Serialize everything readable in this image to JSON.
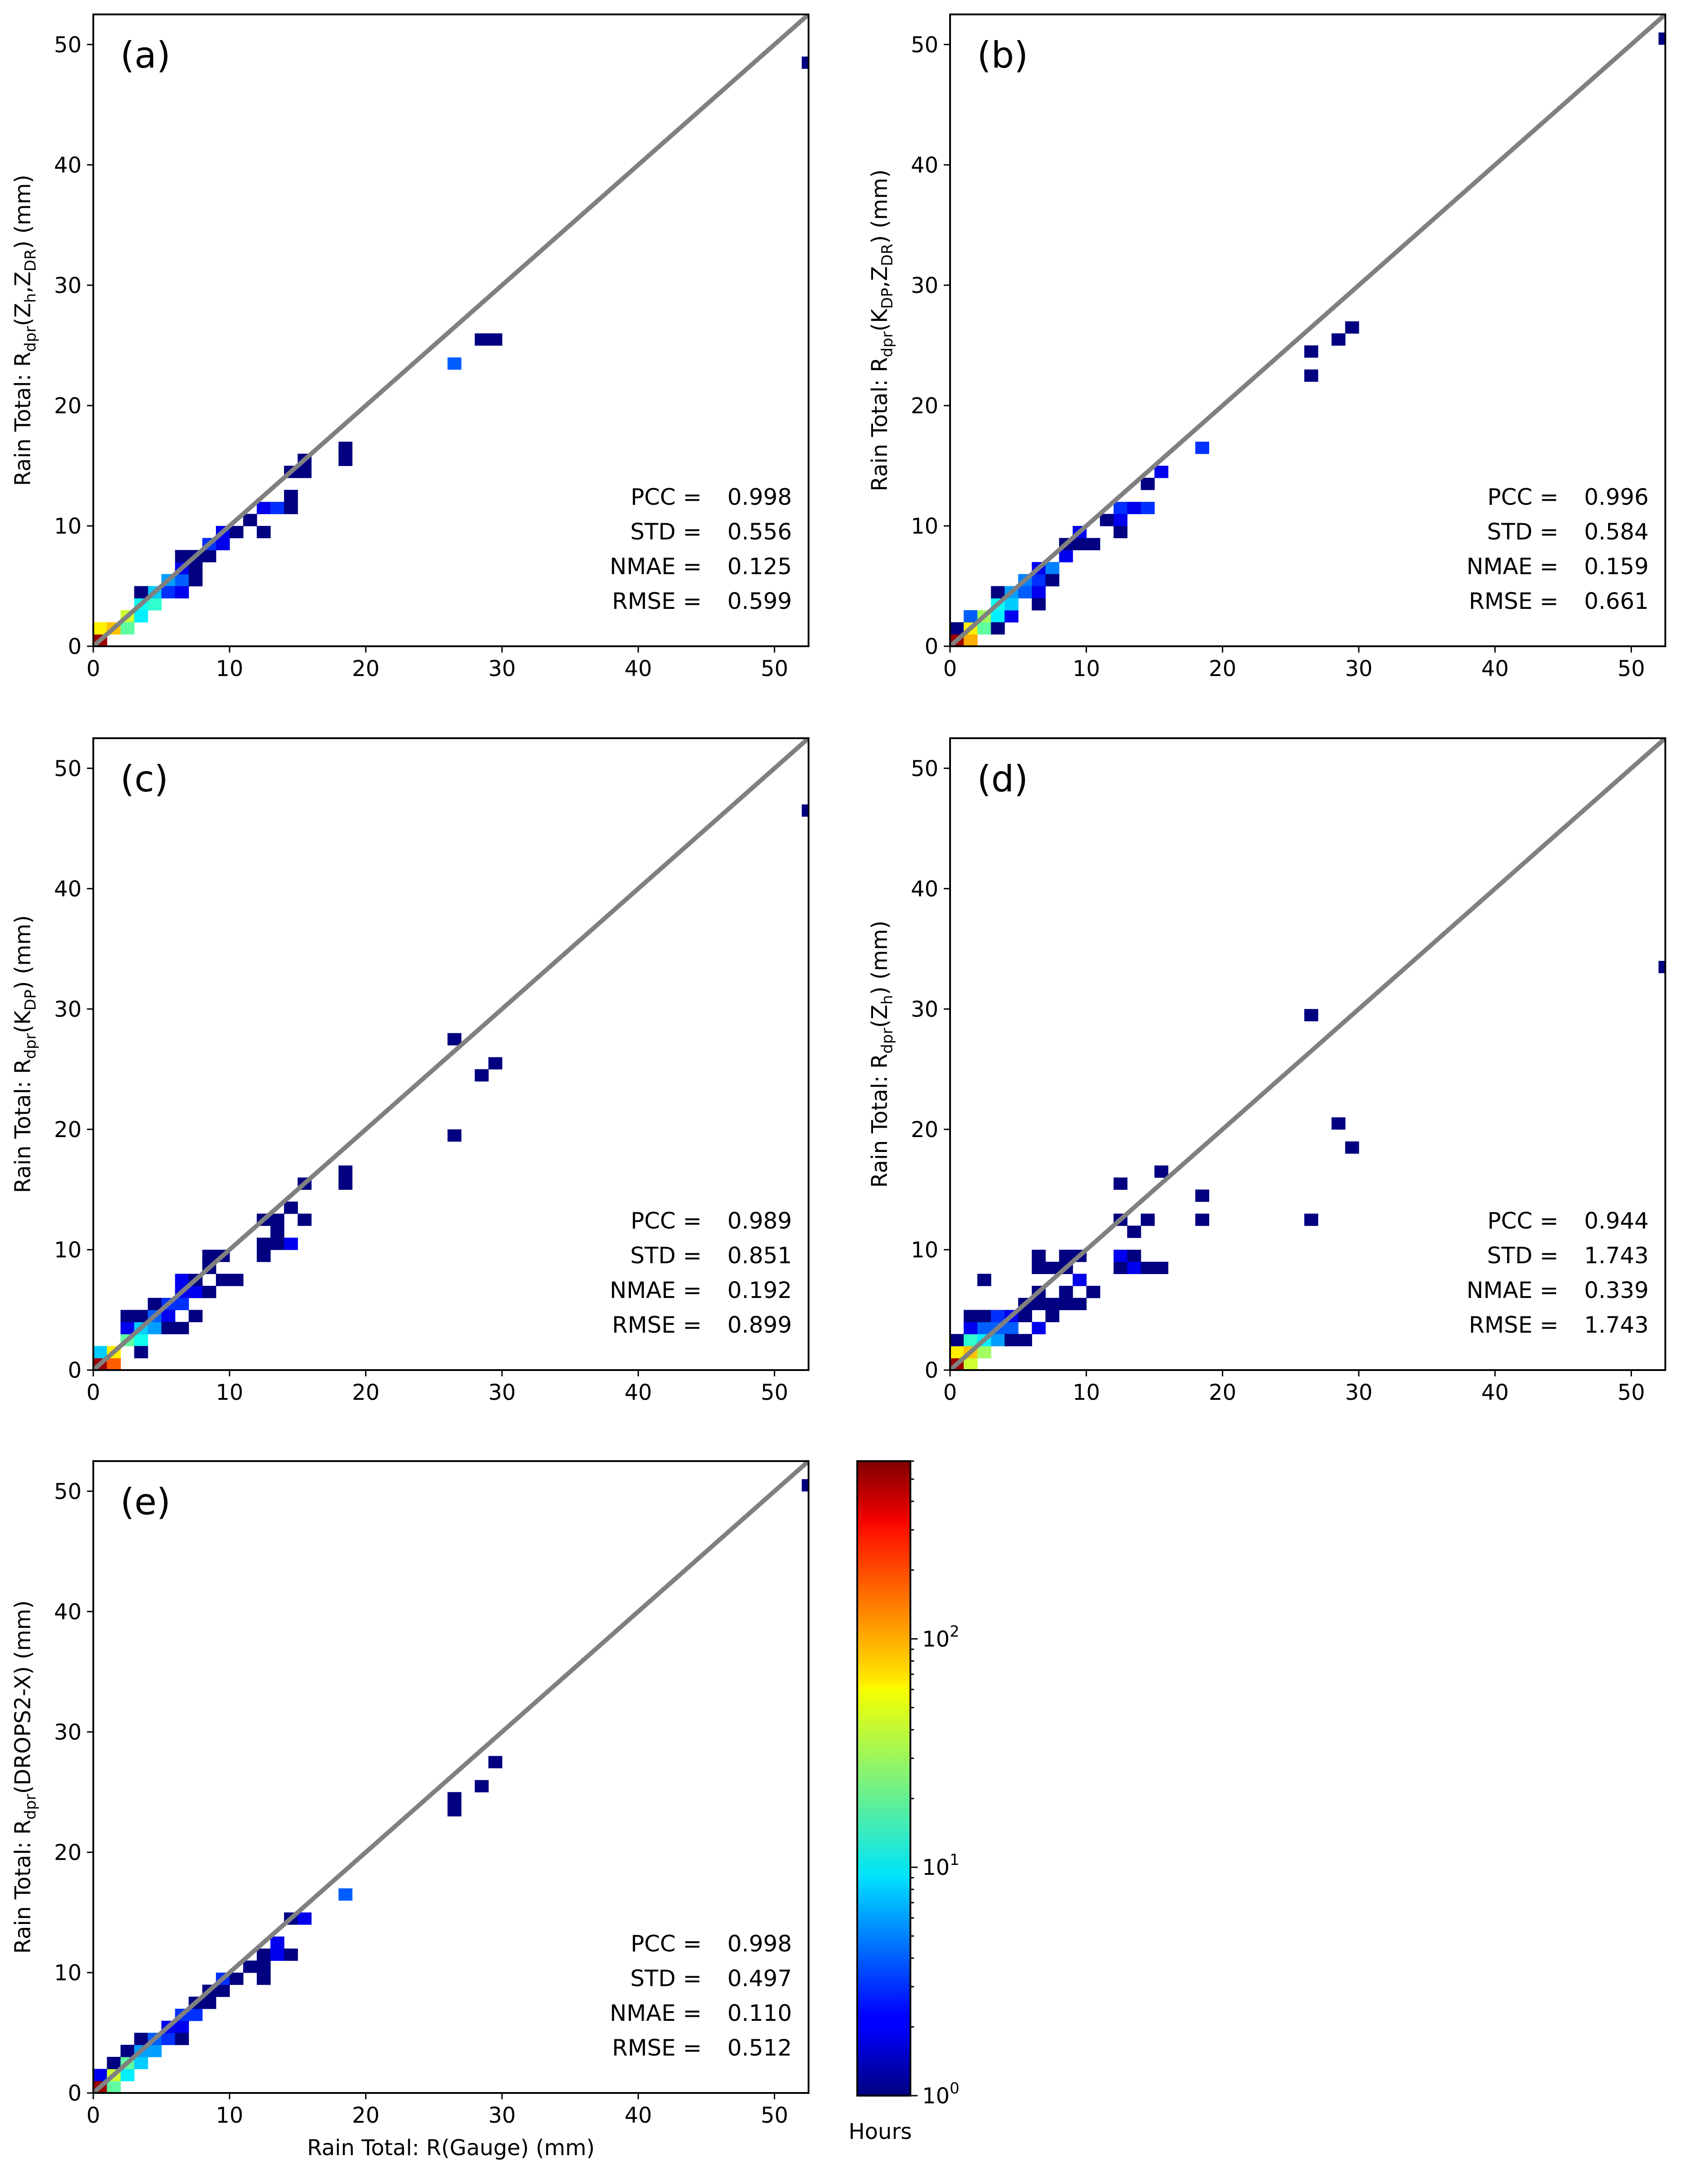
{
  "colorbar": {
    "label": "Hours",
    "scale": "log",
    "range": [
      1,
      600
    ],
    "colormap": "jet",
    "ticks": [
      {
        "base": "10",
        "exp": "0",
        "value": 1
      },
      {
        "base": "10",
        "exp": "1",
        "value": 10
      },
      {
        "base": "10",
        "exp": "2",
        "value": 100
      }
    ]
  },
  "shared": {
    "xlabel": "Rain Total: R(Gauge) (mm)",
    "xlim": [
      0,
      52.5
    ],
    "ylim": [
      0,
      52.5
    ],
    "ticks": [
      "0",
      "10",
      "20",
      "30",
      "40",
      "50"
    ],
    "stat_names": [
      "PCC =",
      "STD =",
      "NMAE =",
      "RMSE ="
    ],
    "bin_width": 1.0,
    "reference_line": "1:1"
  },
  "chart_data": [
    {
      "type": "heatmap",
      "panel": "(a)",
      "title": "",
      "ylabel": {
        "prefix": "Rain Total: R",
        "sub": "dpr",
        "mid": "(Z",
        "sub2": "h",
        "mid2": ",Z",
        "sub3": "DR",
        "suffix": ") (mm)"
      },
      "xlabel": "",
      "xlim": [
        0,
        52.5
      ],
      "ylim": [
        0,
        52.5
      ],
      "stats": {
        "PCC": "0.998",
        "STD": "0.556",
        "NMAE": "0.125",
        "RMSE": "0.599"
      },
      "cells": [
        [
          0,
          0,
          500
        ],
        [
          0,
          1,
          60
        ],
        [
          1,
          1,
          80
        ],
        [
          2,
          2,
          40
        ],
        [
          2,
          1,
          20
        ],
        [
          3,
          3,
          12
        ],
        [
          3,
          2,
          10
        ],
        [
          4,
          3,
          15
        ],
        [
          4,
          4,
          8
        ],
        [
          3,
          4,
          1
        ],
        [
          5,
          5,
          6
        ],
        [
          5,
          4,
          3
        ],
        [
          6,
          5,
          4
        ],
        [
          6,
          6,
          2
        ],
        [
          6,
          4,
          2
        ],
        [
          7,
          6,
          1
        ],
        [
          7,
          7,
          1
        ],
        [
          6,
          7,
          1
        ],
        [
          8,
          7,
          1
        ],
        [
          7,
          5,
          1
        ],
        [
          8,
          8,
          3
        ],
        [
          9,
          8,
          2
        ],
        [
          9,
          9,
          2
        ],
        [
          10,
          9,
          1
        ],
        [
          11,
          10,
          1
        ],
        [
          12,
          11,
          2
        ],
        [
          12,
          9,
          1
        ],
        [
          13,
          11,
          3
        ],
        [
          14,
          14,
          1
        ],
        [
          14,
          12,
          1
        ],
        [
          14,
          11,
          1
        ],
        [
          15,
          14,
          1
        ],
        [
          15,
          15,
          1
        ],
        [
          18,
          15,
          1
        ],
        [
          18,
          16,
          1
        ],
        [
          26,
          23,
          4
        ],
        [
          28,
          25,
          1
        ],
        [
          29,
          25,
          1
        ],
        [
          52,
          48,
          1
        ]
      ]
    },
    {
      "type": "heatmap",
      "panel": "(b)",
      "title": "",
      "ylabel": {
        "prefix": "Rain Total: R",
        "sub": "dpr",
        "mid": "(K",
        "sub2": "DP",
        "mid2": ",Z",
        "sub3": "DR",
        "suffix": ") (mm)"
      },
      "xlabel": "",
      "xlim": [
        0,
        52.5
      ],
      "ylim": [
        0,
        52.5
      ],
      "stats": {
        "PCC": "0.996",
        "STD": "0.584",
        "NMAE": "0.159",
        "RMSE": "0.661"
      },
      "cells": [
        [
          0,
          0,
          500
        ],
        [
          0,
          1,
          1
        ],
        [
          1,
          0,
          90
        ],
        [
          1,
          1,
          60
        ],
        [
          1,
          2,
          4
        ],
        [
          2,
          1,
          20
        ],
        [
          2,
          2,
          30
        ],
        [
          3,
          2,
          10
        ],
        [
          3,
          3,
          12
        ],
        [
          3,
          1,
          1
        ],
        [
          3,
          4,
          1
        ],
        [
          4,
          4,
          6
        ],
        [
          4,
          2,
          2
        ],
        [
          4,
          3,
          8
        ],
        [
          5,
          5,
          5
        ],
        [
          5,
          4,
          4
        ],
        [
          6,
          5,
          3
        ],
        [
          6,
          6,
          2
        ],
        [
          6,
          4,
          2
        ],
        [
          6,
          3,
          1
        ],
        [
          7,
          6,
          5
        ],
        [
          7,
          5,
          1
        ],
        [
          8,
          7,
          2
        ],
        [
          8,
          8,
          1
        ],
        [
          9,
          8,
          1
        ],
        [
          9,
          9,
          2
        ],
        [
          10,
          8,
          1
        ],
        [
          11,
          10,
          1
        ],
        [
          12,
          11,
          3
        ],
        [
          12,
          10,
          2
        ],
        [
          12,
          9,
          1
        ],
        [
          13,
          11,
          2
        ],
        [
          14,
          11,
          3
        ],
        [
          14,
          13,
          1
        ],
        [
          15,
          14,
          2
        ],
        [
          18,
          16,
          3
        ],
        [
          26,
          24,
          1
        ],
        [
          26,
          22,
          1
        ],
        [
          28,
          25,
          1
        ],
        [
          29,
          26,
          1
        ],
        [
          52,
          50,
          1
        ]
      ]
    },
    {
      "type": "heatmap",
      "panel": "(c)",
      "title": "",
      "ylabel": {
        "prefix": "Rain Total: R",
        "sub": "dpr",
        "mid": "(K",
        "sub2": "DP",
        "mid2": "",
        "sub3": "",
        "suffix": ") (mm)"
      },
      "xlabel": "",
      "xlim": [
        0,
        52.5
      ],
      "ylim": [
        0,
        52.5
      ],
      "stats": {
        "PCC": "0.989",
        "STD": "0.851",
        "NMAE": "0.192",
        "RMSE": "0.899"
      },
      "cells": [
        [
          0,
          0,
          500
        ],
        [
          0,
          1,
          8
        ],
        [
          1,
          0,
          150
        ],
        [
          1,
          1,
          60
        ],
        [
          2,
          2,
          20
        ],
        [
          2,
          3,
          2
        ],
        [
          2,
          4,
          1
        ],
        [
          3,
          2,
          12
        ],
        [
          3,
          3,
          8
        ],
        [
          3,
          4,
          1
        ],
        [
          3,
          1,
          1
        ],
        [
          4,
          3,
          6
        ],
        [
          4,
          4,
          4
        ],
        [
          4,
          5,
          1
        ],
        [
          5,
          5,
          3
        ],
        [
          5,
          4,
          2
        ],
        [
          5,
          3,
          1
        ],
        [
          6,
          6,
          2
        ],
        [
          6,
          5,
          3
        ],
        [
          6,
          3,
          1
        ],
        [
          6,
          7,
          2
        ],
        [
          7,
          6,
          2
        ],
        [
          7,
          4,
          1
        ],
        [
          7,
          7,
          1
        ],
        [
          8,
          8,
          1
        ],
        [
          8,
          6,
          1
        ],
        [
          8,
          9,
          1
        ],
        [
          9,
          9,
          1
        ],
        [
          9,
          7,
          1
        ],
        [
          10,
          7,
          1
        ],
        [
          12,
          10,
          1
        ],
        [
          12,
          12,
          1
        ],
        [
          12,
          9,
          1
        ],
        [
          13,
          10,
          1
        ],
        [
          13,
          11,
          1
        ],
        [
          13,
          12,
          1
        ],
        [
          14,
          10,
          2
        ],
        [
          14,
          13,
          1
        ],
        [
          15,
          15,
          1
        ],
        [
          15,
          12,
          1
        ],
        [
          18,
          15,
          1
        ],
        [
          18,
          16,
          1
        ],
        [
          26,
          27,
          1
        ],
        [
          26,
          19,
          1
        ],
        [
          28,
          24,
          1
        ],
        [
          29,
          25,
          1
        ],
        [
          52,
          46,
          1
        ]
      ]
    },
    {
      "type": "heatmap",
      "panel": "(d)",
      "title": "",
      "ylabel": {
        "prefix": "Rain Total: R",
        "sub": "dpr",
        "mid": "(Z",
        "sub2": "h",
        "mid2": "",
        "sub3": "",
        "suffix": ") (mm)"
      },
      "xlabel": "",
      "xlim": [
        0,
        52.5
      ],
      "ylim": [
        0,
        52.5
      ],
      "stats": {
        "PCC": "0.944",
        "STD": "1.743",
        "NMAE": "0.339",
        "RMSE": "1.743"
      },
      "cells": [
        [
          0,
          0,
          500
        ],
        [
          0,
          1,
          60
        ],
        [
          0,
          2,
          1
        ],
        [
          1,
          0,
          40
        ],
        [
          1,
          1,
          80
        ],
        [
          1,
          2,
          15
        ],
        [
          1,
          3,
          2
        ],
        [
          1,
          4,
          1
        ],
        [
          2,
          1,
          30
        ],
        [
          2,
          2,
          10
        ],
        [
          2,
          3,
          4
        ],
        [
          2,
          4,
          1
        ],
        [
          2,
          7,
          1
        ],
        [
          3,
          2,
          6
        ],
        [
          3,
          3,
          4
        ],
        [
          3,
          4,
          3
        ],
        [
          4,
          3,
          4
        ],
        [
          4,
          4,
          2
        ],
        [
          4,
          2,
          1
        ],
        [
          5,
          5,
          1
        ],
        [
          5,
          2,
          1
        ],
        [
          5,
          4,
          1
        ],
        [
          6,
          3,
          2
        ],
        [
          6,
          6,
          1
        ],
        [
          6,
          9,
          1
        ],
        [
          6,
          8,
          1
        ],
        [
          6,
          5,
          1
        ],
        [
          7,
          5,
          1
        ],
        [
          7,
          8,
          1
        ],
        [
          7,
          4,
          1
        ],
        [
          8,
          6,
          1
        ],
        [
          8,
          9,
          1
        ],
        [
          8,
          5,
          1
        ],
        [
          8,
          8,
          1
        ],
        [
          9,
          7,
          2
        ],
        [
          9,
          5,
          1
        ],
        [
          9,
          9,
          1
        ],
        [
          10,
          6,
          1
        ],
        [
          12,
          8,
          1
        ],
        [
          12,
          9,
          2
        ],
        [
          12,
          15,
          1
        ],
        [
          12,
          12,
          1
        ],
        [
          13,
          9,
          1
        ],
        [
          13,
          11,
          1
        ],
        [
          13,
          8,
          2
        ],
        [
          14,
          8,
          1
        ],
        [
          14,
          12,
          1
        ],
        [
          15,
          16,
          1
        ],
        [
          15,
          8,
          1
        ],
        [
          18,
          14,
          1
        ],
        [
          18,
          12,
          1
        ],
        [
          26,
          29,
          1
        ],
        [
          26,
          12,
          1
        ],
        [
          28,
          20,
          1
        ],
        [
          29,
          18,
          1
        ],
        [
          52,
          33,
          1
        ]
      ]
    },
    {
      "type": "heatmap",
      "panel": "(e)",
      "title": "",
      "ylabel": {
        "prefix": "Rain Total: R",
        "sub": "dpr",
        "mid": "(DROPS2-X",
        "sub2": "",
        "mid2": "",
        "sub3": "",
        "suffix": ") (mm)"
      },
      "xlabel": "Rain Total: R(Gauge) (mm)",
      "xlim": [
        0,
        52.5
      ],
      "ylim": [
        0,
        52.5
      ],
      "stats": {
        "PCC": "0.998",
        "STD": "0.497",
        "NMAE": "0.110",
        "RMSE": "0.512"
      },
      "cells": [
        [
          0,
          0,
          500
        ],
        [
          0,
          1,
          2
        ],
        [
          1,
          0,
          20
        ],
        [
          1,
          1,
          40
        ],
        [
          1,
          2,
          1
        ],
        [
          2,
          1,
          10
        ],
        [
          2,
          2,
          20
        ],
        [
          2,
          3,
          1
        ],
        [
          3,
          2,
          8
        ],
        [
          3,
          3,
          6
        ],
        [
          3,
          4,
          1
        ],
        [
          4,
          3,
          6
        ],
        [
          4,
          4,
          4
        ],
        [
          5,
          4,
          3
        ],
        [
          5,
          5,
          2
        ],
        [
          6,
          5,
          2
        ],
        [
          6,
          6,
          3
        ],
        [
          6,
          4,
          1
        ],
        [
          7,
          6,
          3
        ],
        [
          7,
          7,
          1
        ],
        [
          8,
          8,
          1
        ],
        [
          8,
          7,
          1
        ],
        [
          9,
          8,
          1
        ],
        [
          9,
          9,
          3
        ],
        [
          10,
          9,
          1
        ],
        [
          11,
          10,
          1
        ],
        [
          12,
          10,
          1
        ],
        [
          12,
          9,
          1
        ],
        [
          12,
          11,
          1
        ],
        [
          13,
          11,
          2
        ],
        [
          13,
          12,
          2
        ],
        [
          14,
          11,
          1
        ],
        [
          14,
          14,
          1
        ],
        [
          15,
          14,
          2
        ],
        [
          18,
          16,
          4
        ],
        [
          26,
          24,
          1
        ],
        [
          26,
          23,
          1
        ],
        [
          28,
          25,
          1
        ],
        [
          29,
          27,
          1
        ],
        [
          52,
          50,
          1
        ]
      ]
    }
  ]
}
